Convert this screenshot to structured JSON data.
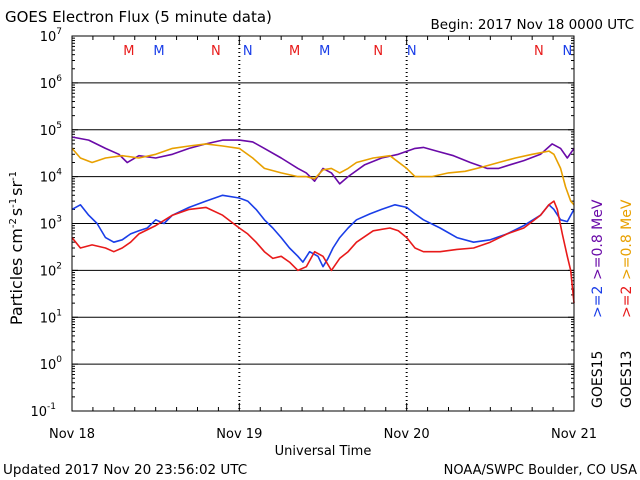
{
  "chart_data": {
    "type": "line",
    "title": "GOES Electron Flux (5 minute data)",
    "begin_label": "Begin: 2017 Nov 18 0000 UTC",
    "xlabel": "Universal Time",
    "ylabel_text": "Particles cm",
    "ylabel_sup1": "-2",
    "ylabel_s": "s",
    "ylabel_sup2": "-1",
    "ylabel_sr": "sr",
    "ylabel_sup3": "-1",
    "x_ticks": [
      "Nov 18",
      "Nov 19",
      "Nov 20",
      "Nov 21"
    ],
    "x_range_days": [
      0,
      3
    ],
    "y_scale": "log",
    "ylim": [
      0.1,
      10000000
    ],
    "y_ticks": [
      {
        "base": "10",
        "exp": "7"
      },
      {
        "base": "10",
        "exp": "6"
      },
      {
        "base": "10",
        "exp": "5"
      },
      {
        "base": "10",
        "exp": "4"
      },
      {
        "base": "10",
        "exp": "3"
      },
      {
        "base": "10",
        "exp": "2"
      },
      {
        "base": "10",
        "exp": "1"
      },
      {
        "base": "10",
        "exp": "0"
      },
      {
        "base": "10",
        "exp": "-1"
      }
    ],
    "gridlines_y": [
      100000,
      10000,
      1000,
      100,
      10,
      1,
      1000000
    ],
    "dashed_threshold": 1000,
    "mn_markers": [
      {
        "label": "M",
        "day": 0.34,
        "color": "#e81a1a"
      },
      {
        "label": "M",
        "day": 0.52,
        "color": "#1a3ee8"
      },
      {
        "label": "N",
        "day": 0.86,
        "color": "#e81a1a"
      },
      {
        "label": "N",
        "day": 1.05,
        "color": "#1a3ee8"
      },
      {
        "label": "M",
        "day": 1.33,
        "color": "#e81a1a"
      },
      {
        "label": "M",
        "day": 1.51,
        "color": "#1a3ee8"
      },
      {
        "label": "N",
        "day": 1.83,
        "color": "#e81a1a"
      },
      {
        "label": "N",
        "day": 2.03,
        "color": "#1a3ee8"
      },
      {
        "label": "N",
        "day": 2.79,
        "color": "#e81a1a"
      },
      {
        "label": "N",
        "day": 2.96,
        "color": "#1a3ee8"
      }
    ],
    "legend": {
      "goes15": "GOES15",
      "goes13": "GOES13",
      "items": [
        {
          "label": ">=0.8 MeV",
          "color": "#e8a000",
          "col": 1
        },
        {
          "label": ">=2",
          "color": "#e81a1a",
          "col": 1
        },
        {
          "label": ">=0.8 MeV",
          "color": "#6a0aa8",
          "col": 0
        },
        {
          "label": ">=2",
          "color": "#1a3ee8",
          "col": 0
        }
      ]
    },
    "series": [
      {
        "name": "GOES15 >=0.8 MeV",
        "color": "#6a0aa8",
        "points": [
          [
            0.0,
            70000
          ],
          [
            0.1,
            60000
          ],
          [
            0.2,
            40000
          ],
          [
            0.28,
            30000
          ],
          [
            0.33,
            20000
          ],
          [
            0.4,
            28000
          ],
          [
            0.5,
            25000
          ],
          [
            0.6,
            30000
          ],
          [
            0.7,
            40000
          ],
          [
            0.8,
            50000
          ],
          [
            0.9,
            60000
          ],
          [
            1.0,
            60000
          ],
          [
            1.08,
            55000
          ],
          [
            1.15,
            40000
          ],
          [
            1.25,
            25000
          ],
          [
            1.35,
            15000
          ],
          [
            1.4,
            12000
          ],
          [
            1.45,
            8000
          ],
          [
            1.5,
            15000
          ],
          [
            1.55,
            12000
          ],
          [
            1.6,
            7000
          ],
          [
            1.65,
            10000
          ],
          [
            1.75,
            18000
          ],
          [
            1.85,
            25000
          ],
          [
            1.95,
            30000
          ],
          [
            2.05,
            40000
          ],
          [
            2.1,
            42000
          ],
          [
            2.18,
            35000
          ],
          [
            2.28,
            28000
          ],
          [
            2.38,
            20000
          ],
          [
            2.48,
            15000
          ],
          [
            2.55,
            15000
          ],
          [
            2.62,
            18000
          ],
          [
            2.7,
            22000
          ],
          [
            2.8,
            30000
          ],
          [
            2.87,
            50000
          ],
          [
            2.92,
            40000
          ],
          [
            2.96,
            25000
          ],
          [
            3.0,
            40000
          ]
        ]
      },
      {
        "name": "GOES13 >=0.8 MeV",
        "color": "#e8a000",
        "points": [
          [
            0.0,
            40000
          ],
          [
            0.05,
            25000
          ],
          [
            0.12,
            20000
          ],
          [
            0.2,
            25000
          ],
          [
            0.3,
            28000
          ],
          [
            0.4,
            25000
          ],
          [
            0.5,
            30000
          ],
          [
            0.6,
            40000
          ],
          [
            0.7,
            45000
          ],
          [
            0.8,
            50000
          ],
          [
            0.9,
            45000
          ],
          [
            1.0,
            40000
          ],
          [
            1.08,
            25000
          ],
          [
            1.15,
            15000
          ],
          [
            1.25,
            12000
          ],
          [
            1.35,
            10000
          ],
          [
            1.4,
            10000
          ],
          [
            1.45,
            9000
          ],
          [
            1.5,
            14000
          ],
          [
            1.55,
            15000
          ],
          [
            1.6,
            12000
          ],
          [
            1.65,
            15000
          ],
          [
            1.7,
            20000
          ],
          [
            1.8,
            25000
          ],
          [
            1.9,
            28000
          ],
          [
            2.0,
            15000
          ],
          [
            2.05,
            10000
          ],
          [
            2.15,
            10000
          ],
          [
            2.25,
            12000
          ],
          [
            2.35,
            13000
          ],
          [
            2.45,
            16000
          ],
          [
            2.55,
            20000
          ],
          [
            2.65,
            25000
          ],
          [
            2.75,
            30000
          ],
          [
            2.85,
            35000
          ],
          [
            2.88,
            30000
          ],
          [
            2.92,
            15000
          ],
          [
            2.95,
            6000
          ],
          [
            2.98,
            3000
          ],
          [
            3.0,
            2500
          ]
        ]
      },
      {
        "name": "GOES15 >=2 MeV",
        "color": "#1a3ee8",
        "points": [
          [
            0.0,
            2000
          ],
          [
            0.05,
            2500
          ],
          [
            0.1,
            1500
          ],
          [
            0.15,
            1000
          ],
          [
            0.2,
            500
          ],
          [
            0.25,
            400
          ],
          [
            0.3,
            450
          ],
          [
            0.35,
            600
          ],
          [
            0.4,
            700
          ],
          [
            0.45,
            800
          ],
          [
            0.5,
            1200
          ],
          [
            0.55,
            1000
          ],
          [
            0.6,
            1500
          ],
          [
            0.7,
            2200
          ],
          [
            0.8,
            3000
          ],
          [
            0.9,
            4000
          ],
          [
            1.0,
            3500
          ],
          [
            1.05,
            3000
          ],
          [
            1.1,
            2000
          ],
          [
            1.15,
            1200
          ],
          [
            1.2,
            800
          ],
          [
            1.25,
            500
          ],
          [
            1.3,
            300
          ],
          [
            1.35,
            200
          ],
          [
            1.38,
            150
          ],
          [
            1.42,
            250
          ],
          [
            1.47,
            200
          ],
          [
            1.5,
            120
          ],
          [
            1.53,
            180
          ],
          [
            1.56,
            300
          ],
          [
            1.6,
            500
          ],
          [
            1.65,
            800
          ],
          [
            1.7,
            1200
          ],
          [
            1.78,
            1600
          ],
          [
            1.85,
            2000
          ],
          [
            1.93,
            2500
          ],
          [
            2.0,
            2200
          ],
          [
            2.05,
            1600
          ],
          [
            2.1,
            1200
          ],
          [
            2.2,
            800
          ],
          [
            2.3,
            500
          ],
          [
            2.4,
            400
          ],
          [
            2.5,
            450
          ],
          [
            2.6,
            600
          ],
          [
            2.7,
            900
          ],
          [
            2.8,
            1500
          ],
          [
            2.85,
            2500
          ],
          [
            2.88,
            2000
          ],
          [
            2.92,
            1200
          ],
          [
            2.96,
            1100
          ],
          [
            3.0,
            2000
          ]
        ]
      },
      {
        "name": "GOES13 >=2 MeV",
        "color": "#e81a1a",
        "points": [
          [
            0.0,
            500
          ],
          [
            0.05,
            300
          ],
          [
            0.12,
            350
          ],
          [
            0.2,
            300
          ],
          [
            0.25,
            250
          ],
          [
            0.3,
            300
          ],
          [
            0.35,
            400
          ],
          [
            0.4,
            600
          ],
          [
            0.5,
            900
          ],
          [
            0.6,
            1500
          ],
          [
            0.7,
            2000
          ],
          [
            0.8,
            2200
          ],
          [
            0.9,
            1500
          ],
          [
            1.0,
            800
          ],
          [
            1.05,
            600
          ],
          [
            1.1,
            400
          ],
          [
            1.15,
            250
          ],
          [
            1.2,
            180
          ],
          [
            1.25,
            200
          ],
          [
            1.3,
            150
          ],
          [
            1.35,
            100
          ],
          [
            1.4,
            120
          ],
          [
            1.45,
            250
          ],
          [
            1.5,
            200
          ],
          [
            1.55,
            100
          ],
          [
            1.6,
            180
          ],
          [
            1.65,
            250
          ],
          [
            1.7,
            400
          ],
          [
            1.8,
            700
          ],
          [
            1.9,
            800
          ],
          [
            1.95,
            700
          ],
          [
            2.0,
            500
          ],
          [
            2.05,
            300
          ],
          [
            2.1,
            250
          ],
          [
            2.2,
            250
          ],
          [
            2.3,
            280
          ],
          [
            2.4,
            300
          ],
          [
            2.5,
            400
          ],
          [
            2.6,
            600
          ],
          [
            2.7,
            800
          ],
          [
            2.8,
            1500
          ],
          [
            2.85,
            2500
          ],
          [
            2.88,
            3000
          ],
          [
            2.9,
            2000
          ],
          [
            2.93,
            600
          ],
          [
            2.96,
            200
          ],
          [
            2.98,
            100
          ],
          [
            3.0,
            20
          ]
        ]
      }
    ]
  },
  "footer": {
    "updated": "Updated 2017 Nov 20 23:56:02 UTC",
    "credit": "NOAA/SWPC Boulder, CO USA"
  }
}
